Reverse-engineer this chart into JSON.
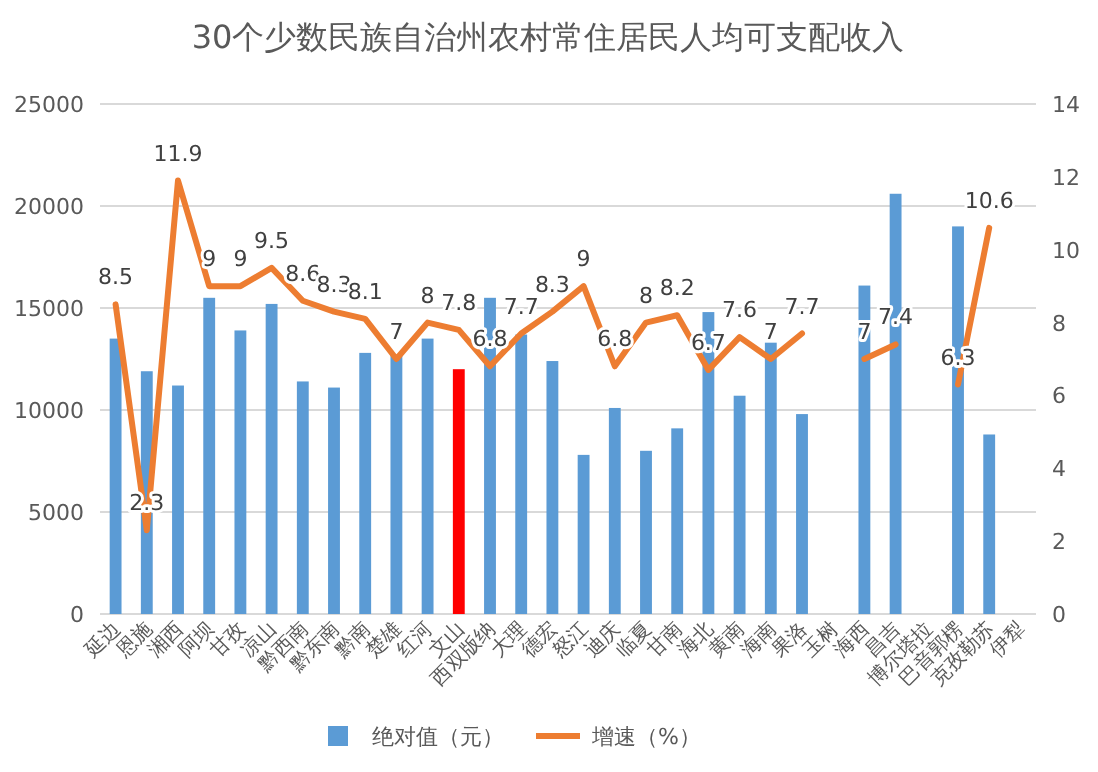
{
  "chart_data": {
    "type": "bar",
    "title": "30个少数民族自治州农村常住居民人均可支配收入",
    "categories": [
      "延边",
      "恩施",
      "湘西",
      "阿坝",
      "甘孜",
      "凉山",
      "黔西南",
      "黔东南",
      "黔南",
      "楚雄",
      "红河",
      "文山",
      "西双版纳",
      "大理",
      "德宏",
      "怒江",
      "迪庆",
      "临夏",
      "甘南",
      "海北",
      "黄南",
      "海南",
      "果洛",
      "玉树",
      "海西",
      "昌吉",
      "博尔塔拉",
      "巴音郭楞",
      "克孜勒苏",
      "伊犁"
    ],
    "series": [
      {
        "name": "绝对值（元）",
        "color": "#5b9bd5",
        "colors": [
          "#5b9bd5",
          "#5b9bd5",
          "#5b9bd5",
          "#5b9bd5",
          "#5b9bd5",
          "#5b9bd5",
          "#5b9bd5",
          "#5b9bd5",
          "#5b9bd5",
          "#5b9bd5",
          "#5b9bd5",
          "#ff0000",
          "#5b9bd5",
          "#5b9bd5",
          "#5b9bd5",
          "#5b9bd5",
          "#5b9bd5",
          "#5b9bd5",
          "#5b9bd5",
          "#5b9bd5",
          "#5b9bd5",
          "#5b9bd5",
          "#5b9bd5",
          "#5b9bd5",
          "#5b9bd5",
          "#5b9bd5",
          "#5b9bd5",
          "#5b9bd5",
          "#5b9bd5",
          "#5b9bd5"
        ],
        "values": [
          13500,
          11900,
          11200,
          15500,
          13900,
          15200,
          11400,
          11100,
          12800,
          12700,
          13500,
          12000,
          15500,
          13700,
          12400,
          7800,
          10100,
          8000,
          9100,
          14800,
          10700,
          13300,
          9800,
          null,
          16100,
          20600,
          null,
          19000,
          8800,
          null
        ]
      },
      {
        "name": "增速（%）",
        "type": "line",
        "axis": "y2",
        "color": "#ed7d31",
        "values": [
          8.5,
          2.3,
          11.9,
          9,
          9,
          9.5,
          8.6,
          8.3,
          8.1,
          7,
          8,
          7.8,
          6.8,
          7.7,
          8.3,
          9,
          6.8,
          8,
          8.2,
          6.7,
          7.6,
          7,
          7.7,
          null,
          7,
          7.4,
          null,
          6.3,
          10.6,
          null
        ],
        "value_labels": [
          "8.5",
          "2.3",
          "11.9",
          "9",
          "9",
          "9.5",
          "8.6",
          "8.3",
          "8.1",
          "7",
          "8",
          "7.8",
          "6.8",
          "7.7",
          "8.3",
          "9",
          "6.8",
          "8",
          "8.2",
          "6.7",
          "7.6",
          "7",
          "7.7",
          null,
          "7",
          "7.4",
          null,
          "6.3",
          "10.6",
          null
        ]
      }
    ],
    "ylim": [
      0,
      25000
    ],
    "yticks": [
      0,
      5000,
      10000,
      15000,
      20000,
      25000
    ],
    "y2lim": [
      0,
      14
    ],
    "y2ticks": [
      0,
      2,
      4,
      6,
      8,
      10,
      12,
      14
    ],
    "grid": "y",
    "legend": "bottom"
  }
}
